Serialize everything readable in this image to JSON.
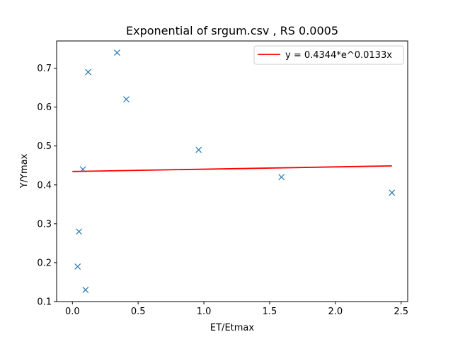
{
  "chart_data": {
    "type": "scatter",
    "title": "Exponential of srgum.csv , RS 0.0005",
    "xlabel": "ET/Etmax",
    "ylabel": "Y/Ymax",
    "xlim": [
      -0.12,
      2.55
    ],
    "ylim": [
      0.1,
      0.77
    ],
    "x_ticks": [
      0.0,
      0.5,
      1.0,
      1.5,
      2.0,
      2.5
    ],
    "x_tick_labels": [
      "0.0",
      "0.5",
      "1.0",
      "1.5",
      "2.0",
      "2.5"
    ],
    "y_ticks": [
      0.1,
      0.2,
      0.3,
      0.4,
      0.5,
      0.6,
      0.7
    ],
    "y_tick_labels": [
      "0.1",
      "0.2",
      "0.3",
      "0.4",
      "0.5",
      "0.6",
      "0.7"
    ],
    "grid": false,
    "legend_position": "top-right",
    "series": [
      {
        "kind": "markers",
        "marker": "x",
        "color": "#1f77b4",
        "points": [
          {
            "x": 0.34,
            "y": 0.74
          },
          {
            "x": 0.12,
            "y": 0.69
          },
          {
            "x": 0.41,
            "y": 0.62
          },
          {
            "x": 0.96,
            "y": 0.49
          },
          {
            "x": 0.08,
            "y": 0.44
          },
          {
            "x": 1.59,
            "y": 0.42
          },
          {
            "x": 2.43,
            "y": 0.38
          },
          {
            "x": 0.05,
            "y": 0.28
          },
          {
            "x": 0.04,
            "y": 0.19
          },
          {
            "x": 0.1,
            "y": 0.13
          }
        ]
      },
      {
        "kind": "line",
        "name": "y = 0.4344*e^0.0133x",
        "color": "#ff0000",
        "points": [
          {
            "x": 0.0,
            "y": 0.4344
          },
          {
            "x": 2.43,
            "y": 0.4488
          }
        ]
      }
    ]
  }
}
